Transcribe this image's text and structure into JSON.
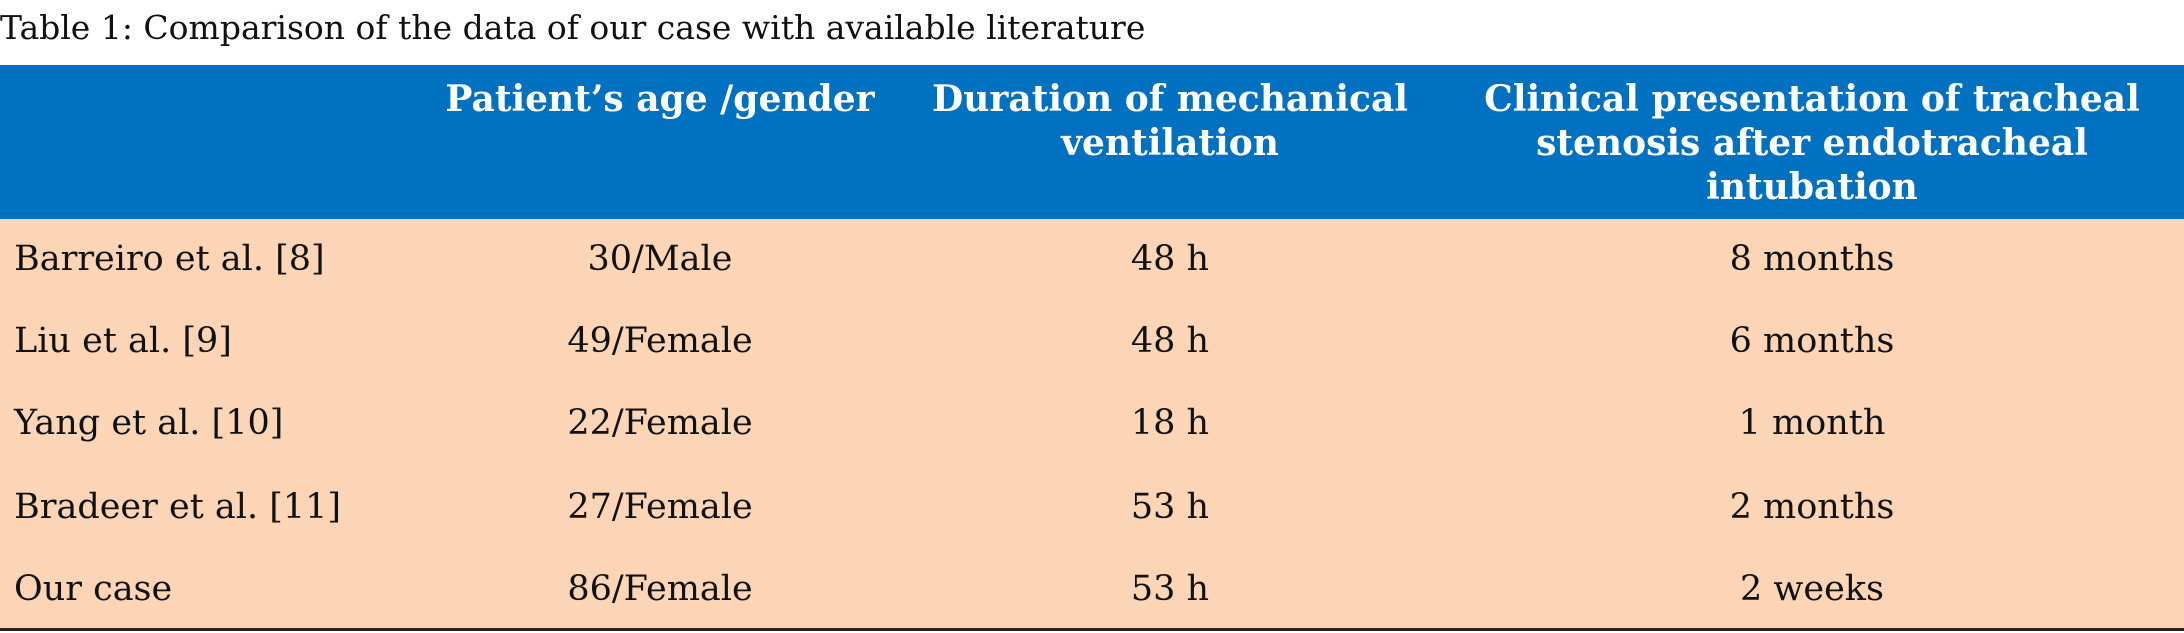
{
  "caption": "Table 1: Comparison of the data of our case with available literature",
  "table": {
    "headers": [
      "",
      "Patient’s age /gender",
      "Duration of mechanical ventilation",
      "Clinical presentation of tracheal stenosis after endotracheal intubation"
    ],
    "rows": [
      [
        "Barreiro et al. [8]",
        "30/Male",
        "48 h",
        "8 months"
      ],
      [
        "Liu et al. [9]",
        "49/Female",
        "48 h",
        "6 months"
      ],
      [
        "Yang et al. [10]",
        "22/Female",
        "18 h",
        "1 month"
      ],
      [
        "Bradeer et al. [11]",
        "27/Female",
        "53 h",
        "2 months"
      ],
      [
        "Our case",
        "86/Female",
        "53 h",
        "2 weeks"
      ]
    ]
  },
  "colors": {
    "header_background": "#0070c0",
    "header_text": "#ffffff",
    "body_background": "#fbd5b5"
  }
}
